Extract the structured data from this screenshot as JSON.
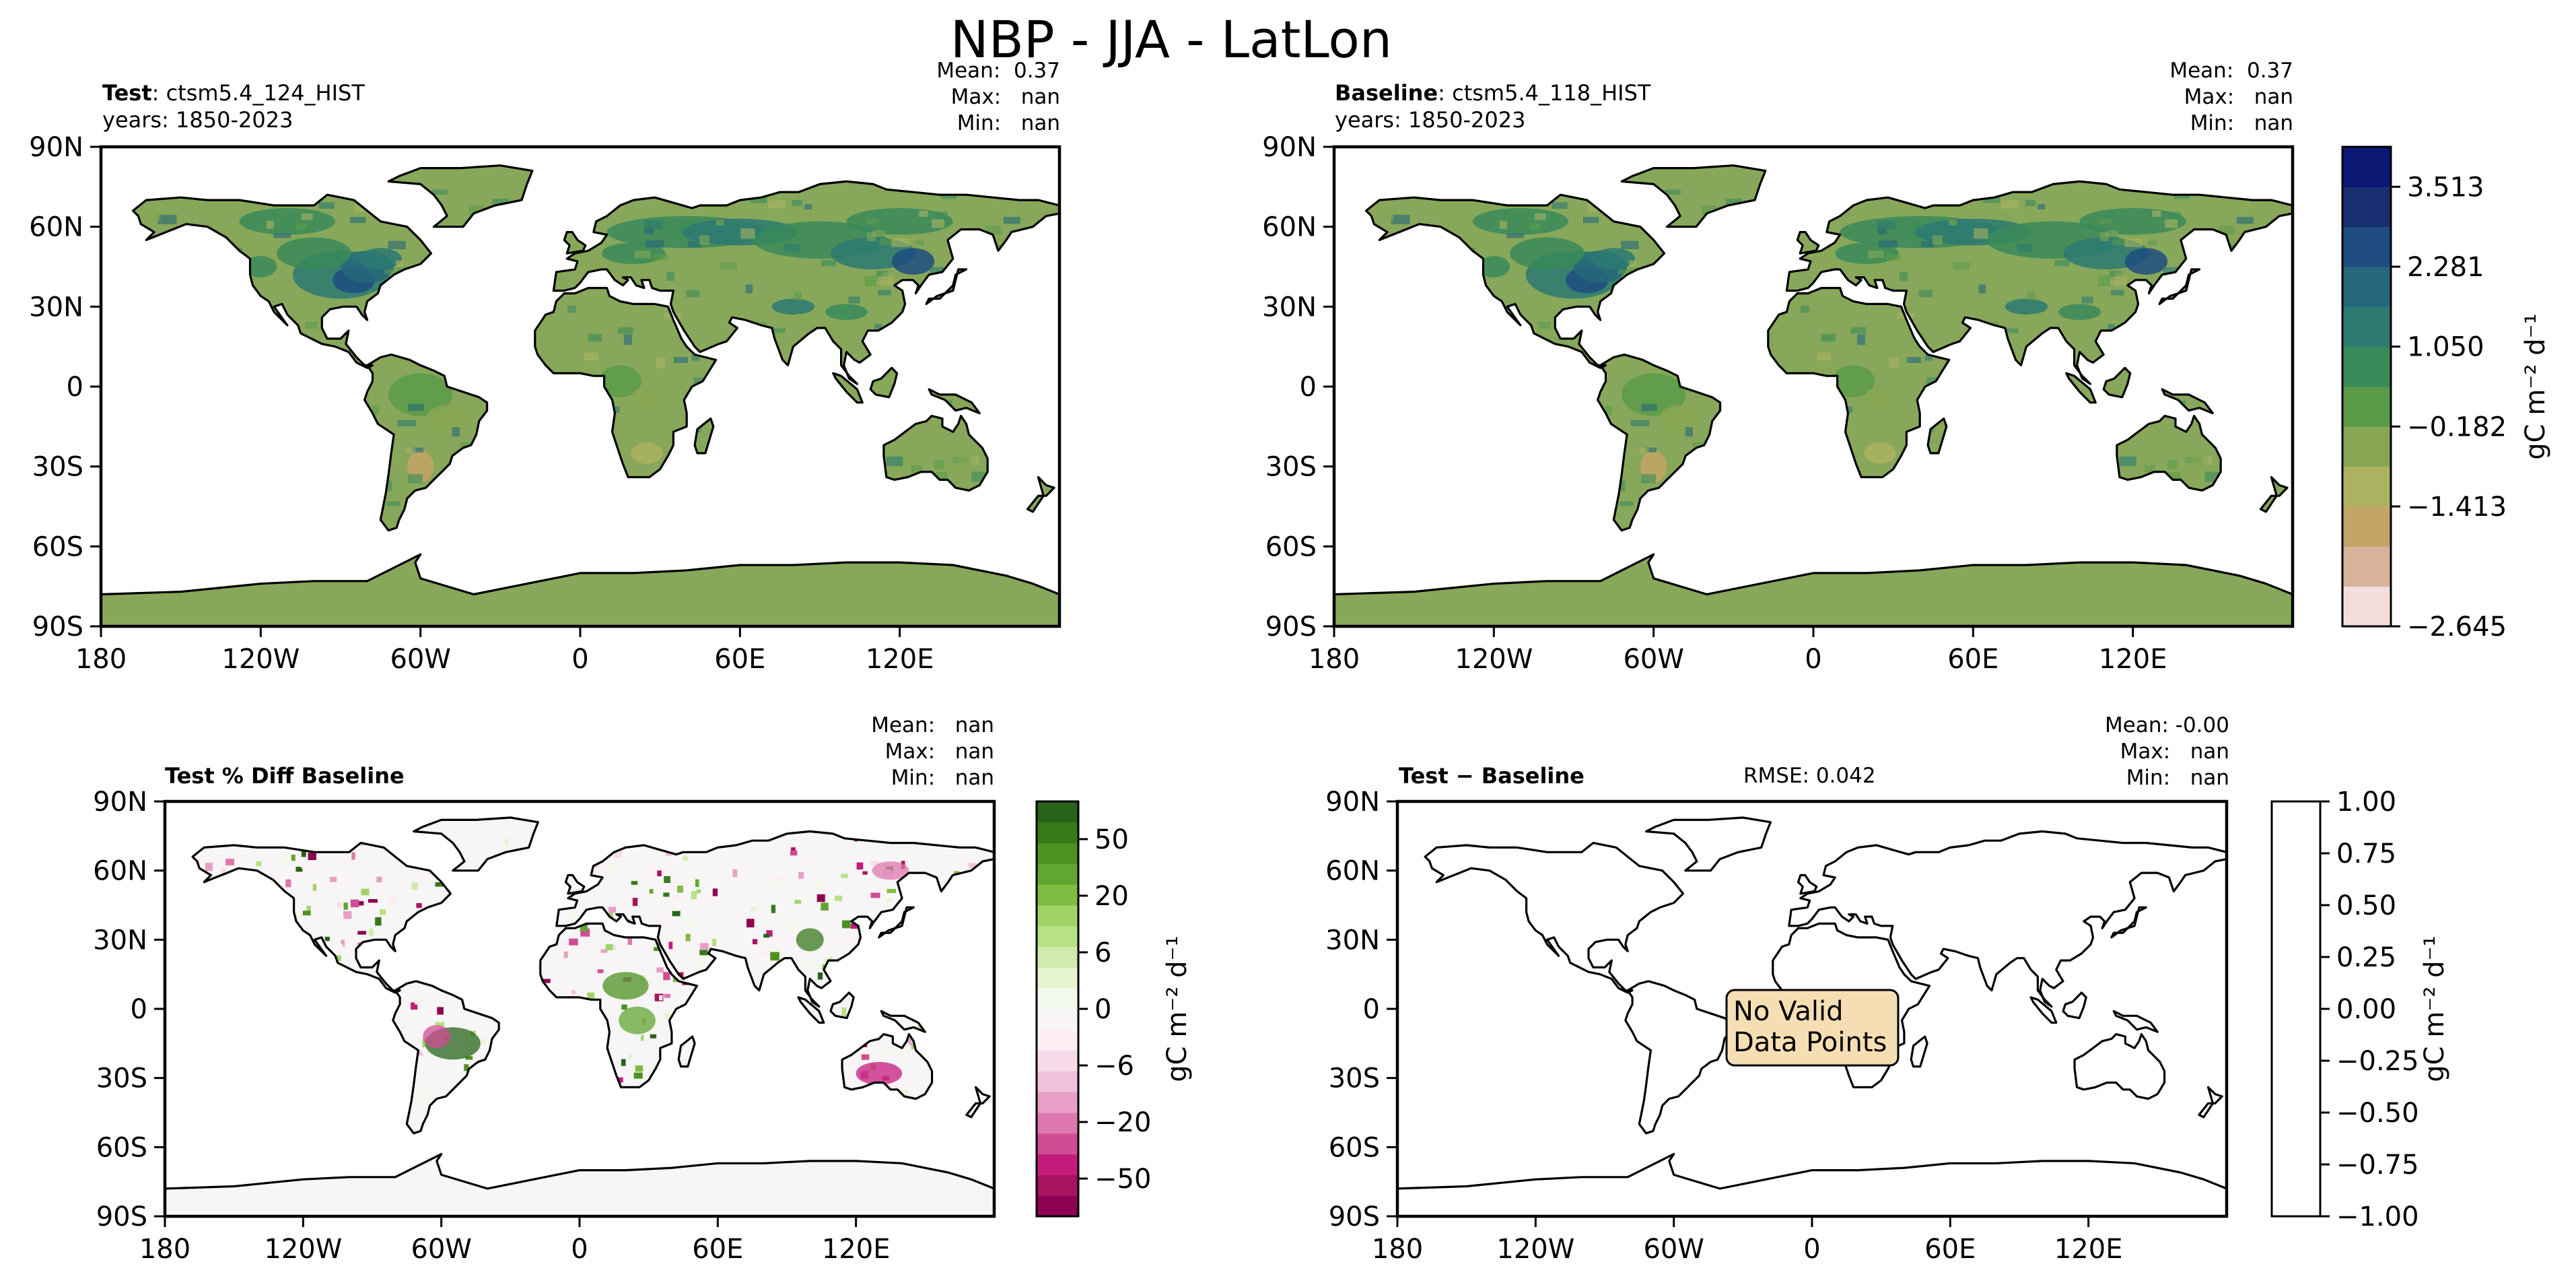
{
  "figure": {
    "title": "NBP - JJA - LatLon"
  },
  "colors": {
    "ocean": "#ffffff",
    "land_test": "#87a75a",
    "coast": "#000000",
    "no_data_box": "#f6deb4"
  },
  "panels": {
    "test": {
      "label_bold": "Test",
      "label_rest": ": ctsm5.4_124_HIST",
      "years": "years: 1850-2023",
      "stats": [
        "Mean:  0.37",
        "Max:   nan",
        "Min:   nan"
      ]
    },
    "baseline": {
      "label_bold": "Baseline",
      "label_rest": ": ctsm5.4_118_HIST",
      "years": "years: 1850-2023",
      "stats": [
        "Mean:  0.37",
        "Max:   nan",
        "Min:   nan"
      ]
    },
    "pctdiff": {
      "label_bold": "Test % Diff Baseline",
      "stats": [
        "Mean:   nan",
        "Max:   nan",
        "Min:   nan"
      ]
    },
    "diff": {
      "label_bold": "Test − Baseline",
      "rmse": "RMSE: 0.042",
      "stats": [
        "Mean: -0.00",
        "Max:   nan",
        "Min:   nan"
      ],
      "annotation": [
        "No Valid",
        "Data Points"
      ]
    }
  },
  "chart_data": [
    {
      "type": "heatmap",
      "name": "test-map",
      "projection": "PlateCarree",
      "xlim": [
        -180,
        180
      ],
      "ylim": [
        -90,
        90
      ],
      "x_ticks": [
        "180",
        "120W",
        "60W",
        "0",
        "60E",
        "120E"
      ],
      "y_ticks": [
        "90N",
        "60N",
        "30N",
        "0",
        "30S",
        "60S",
        "90S"
      ]
    },
    {
      "type": "heatmap",
      "name": "baseline-map",
      "projection": "PlateCarree",
      "xlim": [
        -180,
        180
      ],
      "ylim": [
        -90,
        90
      ],
      "x_ticks": [
        "180",
        "120W",
        "60W",
        "0",
        "60E",
        "120E"
      ],
      "y_ticks": [
        "90N",
        "60N",
        "30N",
        "0",
        "30S",
        "60S",
        "90S"
      ]
    },
    {
      "type": "heatmap",
      "name": "pctdiff-map",
      "projection": "PlateCarree",
      "xlim": [
        -180,
        180
      ],
      "ylim": [
        -90,
        90
      ],
      "x_ticks": [
        "180",
        "120W",
        "60W",
        "0",
        "60E",
        "120E"
      ],
      "y_ticks": [
        "90N",
        "60N",
        "30N",
        "0",
        "30S",
        "60S",
        "90S"
      ]
    },
    {
      "type": "heatmap",
      "name": "diff-map",
      "projection": "PlateCarree",
      "xlim": [
        -180,
        180
      ],
      "ylim": [
        -90,
        90
      ],
      "x_ticks": [
        "180",
        "120W",
        "60W",
        "0",
        "60E",
        "120E"
      ],
      "y_ticks": [
        "90N",
        "60N",
        "30N",
        "0",
        "30S",
        "60S",
        "90S"
      ]
    }
  ],
  "colorbars": {
    "abs": {
      "label": "gC m⁻² d⁻¹",
      "ticks": [
        "3.513",
        "2.281",
        "1.050",
        "−0.182",
        "−1.413",
        "−2.645"
      ],
      "colors": [
        "#f4dedd",
        "#d8b29a",
        "#c4a466",
        "#acb360",
        "#87a755",
        "#5b9b48",
        "#3a8a5a",
        "#2c7a72",
        "#25687a",
        "#1f4d80",
        "#172f6e",
        "#0c1773"
      ]
    },
    "pct": {
      "label": "gC m⁻² d⁻¹",
      "ticks": [
        "50",
        "20",
        "6",
        "0",
        "−6",
        "−20",
        "−50"
      ],
      "colors": [
        "#8e0152",
        "#a8135f",
        "#c51b7d",
        "#d04c95",
        "#de77ae",
        "#e79fc6",
        "#f1c0db",
        "#f7dbe9",
        "#fdeef5",
        "#f9f4f6",
        "#f3f8ec",
        "#e6f5d0",
        "#d0ebad",
        "#b8e186",
        "#a0d469",
        "#7fbc41",
        "#61a631",
        "#4d9221",
        "#377a1b",
        "#276419"
      ]
    },
    "diff": {
      "label": "gC m⁻² d⁻¹",
      "ticks": [
        "1.00",
        "0.75",
        "0.50",
        "0.25",
        "0.00",
        "−0.25",
        "−0.50",
        "−0.75",
        "−1.00"
      ]
    }
  }
}
